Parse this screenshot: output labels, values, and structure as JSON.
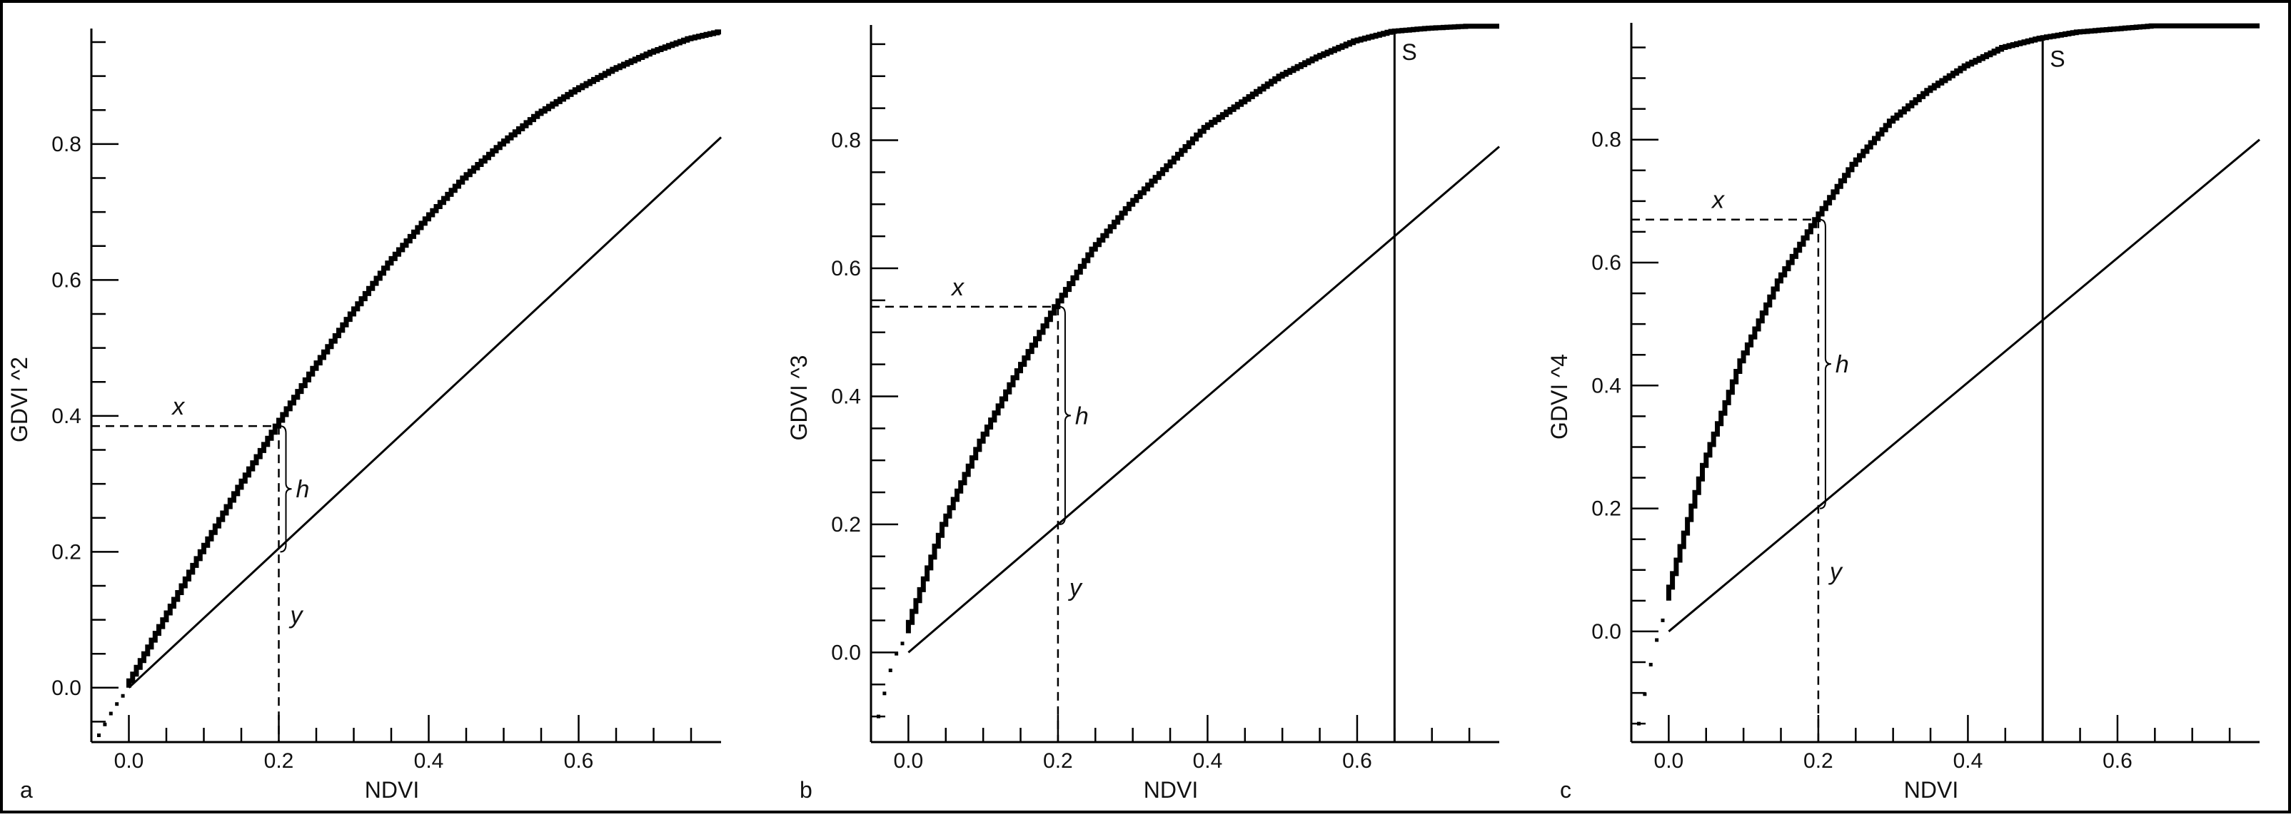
{
  "chart_data": [
    {
      "panel": "a",
      "type": "line",
      "xlabel": "NDVI",
      "ylabel": "GDVI ^2",
      "power": 2,
      "xlim": [
        -0.05,
        0.79
      ],
      "ylim": [
        -0.08,
        0.97
      ],
      "xticks": [
        0.0,
        0.2,
        0.4,
        0.6
      ],
      "xtick_labels": [
        "0.0",
        "0.2",
        "0.4",
        "0.6"
      ],
      "yticks": [
        0.0,
        0.2,
        0.4,
        0.6,
        0.8
      ],
      "ytick_labels": [
        "0.0",
        "0.2",
        "0.4",
        "0.6",
        "0.8"
      ],
      "x_ref": 0.2,
      "curve_at_ref": 0.385,
      "line_at_ref": 0.2,
      "s_line": null,
      "series": [
        {
          "style": "stepped curve",
          "x": [
            -0.04,
            -0.02,
            0.0,
            0.05,
            0.1,
            0.15,
            0.2,
            0.25,
            0.3,
            0.35,
            0.4,
            0.45,
            0.5,
            0.55,
            0.6,
            0.65,
            0.7,
            0.75,
            0.79
          ],
          "y": [
            -0.07,
            -0.03,
            0.0,
            0.1,
            0.2,
            0.295,
            0.385,
            0.47,
            0.55,
            0.625,
            0.69,
            0.75,
            0.8,
            0.845,
            0.88,
            0.91,
            0.935,
            0.955,
            0.965
          ]
        },
        {
          "style": "straight line",
          "x": [
            0.0,
            0.79
          ],
          "y": [
            0.0,
            0.81
          ]
        }
      ],
      "annotations": {
        "x": "x",
        "h": "h",
        "y": "y",
        "s": ""
      },
      "letter": "a"
    },
    {
      "panel": "b",
      "type": "line",
      "xlabel": "NDVI",
      "ylabel": "GDVI ^3",
      "power": 3,
      "xlim": [
        -0.05,
        0.79
      ],
      "ylim": [
        -0.14,
        0.98
      ],
      "xticks": [
        0.0,
        0.2,
        0.4,
        0.6
      ],
      "xtick_labels": [
        "0.0",
        "0.2",
        "0.4",
        "0.6"
      ],
      "yticks": [
        0.0,
        0.2,
        0.4,
        0.6,
        0.8
      ],
      "ytick_labels": [
        "0.0",
        "0.2",
        "0.4",
        "0.6",
        "0.8"
      ],
      "x_ref": 0.2,
      "curve_at_ref": 0.54,
      "line_at_ref": 0.2,
      "s_line": 0.65,
      "series": [
        {
          "style": "stepped curve",
          "x": [
            -0.04,
            -0.02,
            0.0,
            0.05,
            0.1,
            0.15,
            0.2,
            0.25,
            0.3,
            0.35,
            0.4,
            0.45,
            0.5,
            0.55,
            0.6,
            0.65,
            0.7,
            0.75,
            0.79
          ],
          "y": [
            -0.1,
            -0.01,
            0.03,
            0.2,
            0.33,
            0.44,
            0.54,
            0.63,
            0.7,
            0.76,
            0.82,
            0.86,
            0.9,
            0.93,
            0.955,
            0.97,
            0.975,
            0.978,
            0.978
          ]
        },
        {
          "style": "straight line",
          "x": [
            0.0,
            0.79
          ],
          "y": [
            0.0,
            0.79
          ]
        }
      ],
      "annotations": {
        "x": "x",
        "h": "h",
        "y": "y",
        "s": "S"
      },
      "letter": "b"
    },
    {
      "panel": "c",
      "type": "line",
      "xlabel": "NDVI",
      "ylabel": "GDVI ^4",
      "power": 4,
      "xlim": [
        -0.05,
        0.79
      ],
      "ylim": [
        -0.18,
        0.99
      ],
      "xticks": [
        0.0,
        0.2,
        0.4,
        0.6
      ],
      "xtick_labels": [
        "0.0",
        "0.2",
        "0.4",
        "0.6"
      ],
      "yticks": [
        0.0,
        0.2,
        0.4,
        0.6,
        0.8
      ],
      "ytick_labels": [
        "0.0",
        "0.2",
        "0.4",
        "0.6",
        "0.8"
      ],
      "x_ref": 0.2,
      "curve_at_ref": 0.67,
      "line_at_ref": 0.2,
      "s_line": 0.5,
      "series": [
        {
          "style": "stepped curve",
          "x": [
            -0.04,
            -0.02,
            0.0,
            0.05,
            0.1,
            0.15,
            0.2,
            0.25,
            0.3,
            0.35,
            0.4,
            0.45,
            0.5,
            0.55,
            0.6,
            0.65,
            0.7,
            0.75,
            0.79
          ],
          "y": [
            -0.15,
            -0.03,
            0.05,
            0.27,
            0.44,
            0.57,
            0.67,
            0.76,
            0.83,
            0.88,
            0.92,
            0.95,
            0.965,
            0.975,
            0.98,
            0.985,
            0.985,
            0.985,
            0.985
          ]
        },
        {
          "style": "straight line",
          "x": [
            0.0,
            0.79
          ],
          "y": [
            0.0,
            0.8
          ]
        }
      ],
      "annotations": {
        "x": "x",
        "h": "h",
        "y": "y",
        "s": "S"
      },
      "letter": "c"
    }
  ]
}
